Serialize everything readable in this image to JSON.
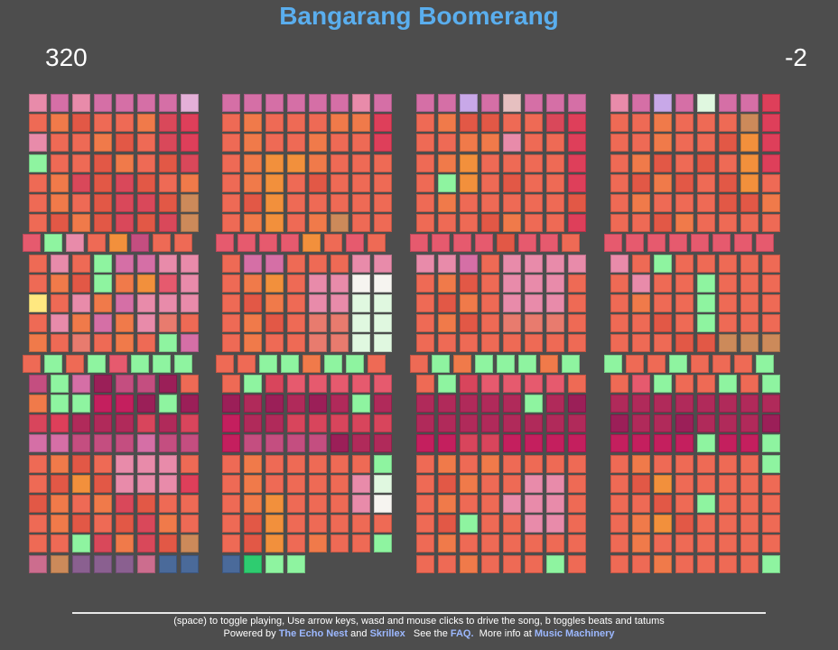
{
  "title": "Bangarang Boomerang",
  "counter_left": "320",
  "counter_right": "-2",
  "footer": {
    "instructions": "(space) to toggle playing, Use arrow keys, wasd and mouse clicks to drive the song, b toggles beats and tatums",
    "powered_by_prefix": "Powered by",
    "echo_nest": "The Echo Nest",
    "and": "and",
    "skrillex": "Skrillex",
    "see_the": "See the",
    "faq": "FAQ.",
    "more_info": "More info at",
    "music_machinery": "Music Machinery"
  },
  "palette": {
    "a": "#ee6a55",
    "b": "#f07a4a",
    "c": "#e25846",
    "d": "#d9485a",
    "e": "#e87b6e",
    "f": "#f2903c",
    "g": "#e88baa",
    "h": "#d56fa6",
    "i": "#c44e80",
    "j": "#e65a6e",
    "k": "#de3f5a",
    "l": "#cc6d8e",
    "m": "#9b1f58",
    "n": "#b02a5a",
    "o": "#c41f5e",
    "p": "#d8455c",
    "q": "#8a6090",
    "r": "#4a6a9a",
    "s": "#7aa0d0",
    "t": "#e4b0d8",
    "u": "#c8a8e8",
    "v": "#f6f4f0",
    "w": "#e0f8e0",
    "x": "#ffe880",
    "y": "#e6c0c0",
    "z": "#cc8a5a",
    "G": "#8ef4a0",
    "K": "#2ecc70"
  },
  "blocks": [
    {
      "rows": [
        "ghghhhht",
        "abcaabdk",
        "gaabcadk",
        "Gaacbacd",
        "abdcdcab",
        "abacddcz",
        "acbcdcdz",
        "jGgafiaa",
        "agaGhhgg",
        "abcGbfjg",
        "xagbhggg",
        "agbhbgea",
        "baeabaGh",
        "aGaGjGGG",
        "iGhmiima",
        "bGGoomGm",
        "pknnnpnp",
        "hhiiihii",
        "abcaggga",
        "acfcgggk",
        "cbabdcaa",
        "abcacdba",
        "aaGdbdcz",
        "lzqqqlrr"
      ]
    },
    {
      "rows": [
        "hhhhhhgh",
        "abaaabbk",
        "abaabaak",
        "abffbaaa",
        "abfacaaa",
        "acfaaaaa",
        "abfabzaa",
        "jjjjfaja",
        "ahhaaagg",
        "abfaggvv",
        "acbaggww",
        "abcaeeww",
        "abaaeeww",
        "aaGGbGGa",
        "aGpjjjjj",
        "mnmnmnGn",
        "onnppppp",
        "oiiiimnn",
        "abaaaaaG",
        "abaaaagw",
        "abfaaagv",
        "acfaaaaa",
        "acfabaaG",
        "rKGG"
      ]
    },
    {
      "rows": [
        "hhuhyhhh",
        "abccaadk",
        "aabbgaak",
        "abfaaaak",
        "aGfacaak",
        "abaaaaac",
        "aaacbaak",
        "jjjjcjja",
        "gghagggg",
        "abcaggga",
        "acbaggga",
        "abcaeeea",
        "aaaaaaaa",
        "aGbGGGbG",
        "aGpjjjja",
        "nnnnnGnm",
        "nnnnnnnn",
        "ooppoooo",
        "ababaaaa",
        "acbaagga",
        "abaaggga",
        "acGaagga",
        "abaaaaaa",
        "aabaaaGa"
      ]
    },
    {
      "rows": [
        "ghuhwhhk",
        "aabaaazk",
        "aabaacfk",
        "abcacafk",
        "acbcacfa",
        "abaaaccb",
        "aacbaaaa",
        "jjjjjjjj",
        "gaGaaaaa",
        "agaaGaaa",
        "abaaGaaa",
        "aacaGaaa",
        "aaacczzz",
        "GaaGaaaG",
        "ajGaaGaG",
        "nnnnnnnn",
        "mnnmnnnm",
        "ooooGooG",
        "abaaaaaG",
        "acfaaaaa",
        "aacaGaaa",
        "abfcaaaa",
        "abaaaaaa",
        "aabaaaaG"
      ]
    }
  ]
}
